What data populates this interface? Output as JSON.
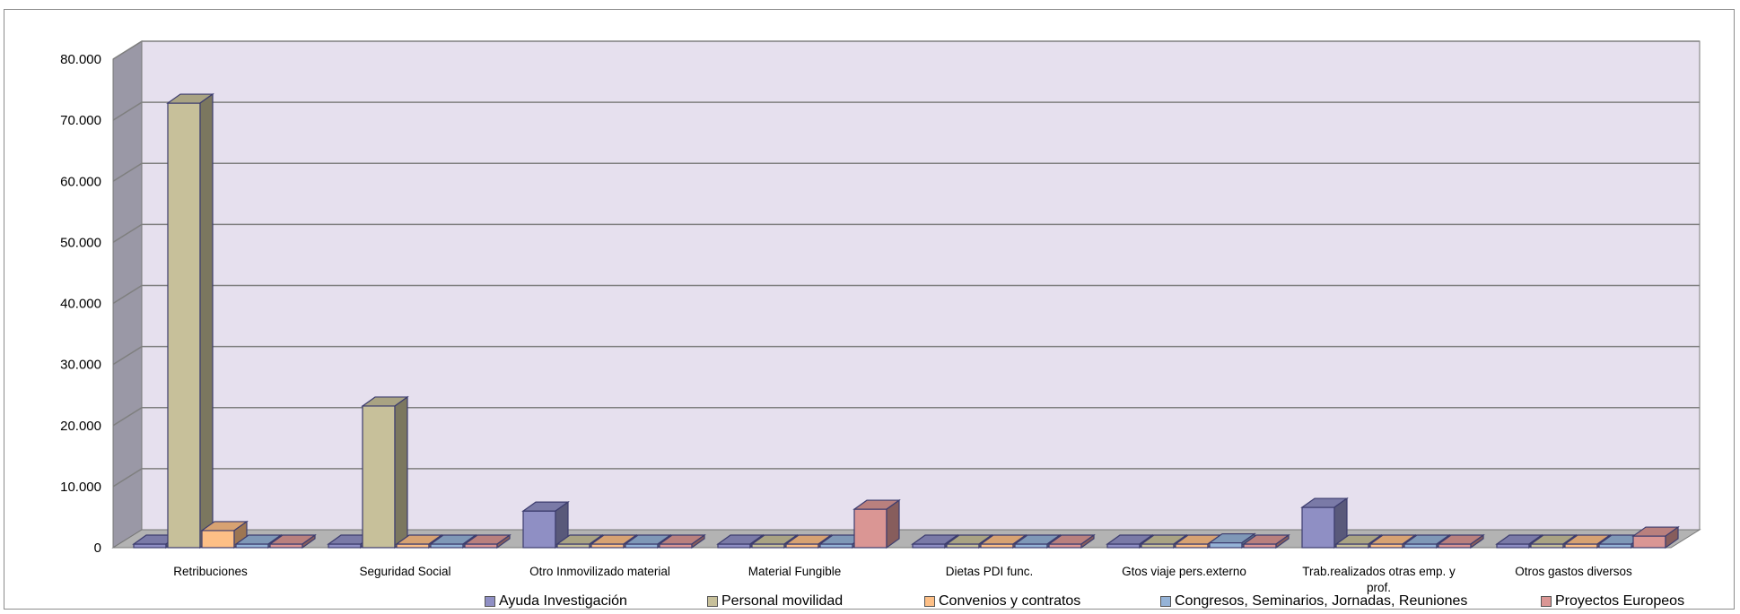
{
  "chart_data": {
    "type": "bar",
    "style": "3d-clustered-column",
    "title": "",
    "xlabel": "",
    "ylabel": "",
    "ylim": [
      0,
      80000
    ],
    "yticks": [
      0,
      10000,
      20000,
      30000,
      40000,
      50000,
      60000,
      70000,
      80000
    ],
    "ytick_labels": [
      "0",
      "10.000",
      "20.000",
      "30.000",
      "40.000",
      "50.000",
      "60.000",
      "70.000",
      "80.000"
    ],
    "grid": true,
    "legend_position": "bottom",
    "categories": [
      "Retribuciones",
      "Seguridad Social",
      "Otro Inmovilizado material",
      "Material Fungible",
      "Dietas PDI func.",
      "Gtos viaje pers.externo",
      "Trab.realizados otras emp. y prof.",
      "Otros gastos diversos"
    ],
    "series": [
      {
        "name": "Ayuda Investigación",
        "color": "#8f8fc4",
        "values": [
          0,
          0,
          6000,
          0,
          0,
          0,
          6600,
          300
        ]
      },
      {
        "name": "Personal movilidad",
        "color": "#c7c09a",
        "values": [
          72800,
          23200,
          0,
          0,
          0,
          0,
          0,
          0
        ]
      },
      {
        "name": "Convenios y contratos",
        "color": "#fdbf86",
        "values": [
          2800,
          0,
          0,
          0,
          0,
          0,
          0,
          0
        ]
      },
      {
        "name": "Congresos, Seminarios, Jornadas, Reuniones",
        "color": "#95b3d7",
        "values": [
          0,
          0,
          0,
          0,
          0,
          800,
          0,
          0
        ]
      },
      {
        "name": "Proyectos Europeos",
        "color": "#da9694",
        "values": [
          0,
          0,
          0,
          6300,
          0,
          0,
          0,
          1900
        ]
      }
    ]
  }
}
